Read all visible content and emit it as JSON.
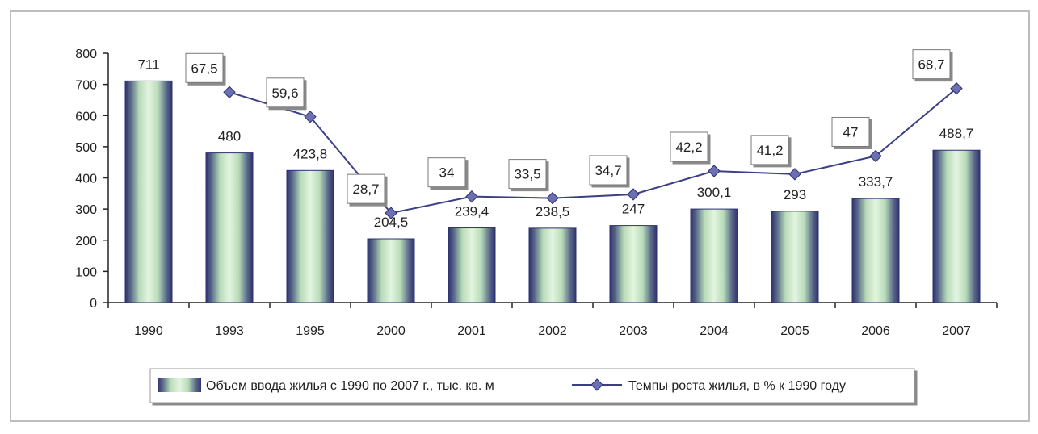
{
  "chart_data": {
    "type": "bar",
    "categories": [
      "1990",
      "1993",
      "1995",
      "2000",
      "2001",
      "2002",
      "2003",
      "2004",
      "2005",
      "2006",
      "2007"
    ],
    "y_ticks": [
      "0",
      "100",
      "200",
      "300",
      "400",
      "500",
      "600",
      "700",
      "800"
    ],
    "ylim": [
      0,
      800
    ],
    "grid": false,
    "legend_position": "bottom",
    "series": [
      {
        "name": "Объем ввода жилья с 1990 по 2007 г., тыс. кв. м",
        "type": "bar",
        "values": [
          711,
          480,
          423.8,
          204.5,
          239.4,
          238.5,
          247,
          300.1,
          293,
          333.7,
          488.7
        ],
        "labels": [
          "711",
          "480",
          "423,8",
          "204,5",
          "239,4",
          "238,5",
          "247",
          "300,1",
          "293",
          "333,7",
          "488,7"
        ],
        "color": "#2e3170",
        "fill_light": "#d4ecd0"
      },
      {
        "name": "Темпы роста жилья, в % к 1990 году",
        "type": "line",
        "values": [
          null,
          67.5,
          59.6,
          28.7,
          34,
          33.5,
          34.7,
          42.2,
          41.2,
          47,
          68.7
        ],
        "labels": [
          "",
          "67,5",
          "59,6",
          "28,7",
          "34",
          "33,5",
          "34,7",
          "42,2",
          "41,2",
          "47",
          "68,7"
        ],
        "color": "#3b3f86",
        "marker": "diamond"
      }
    ]
  }
}
